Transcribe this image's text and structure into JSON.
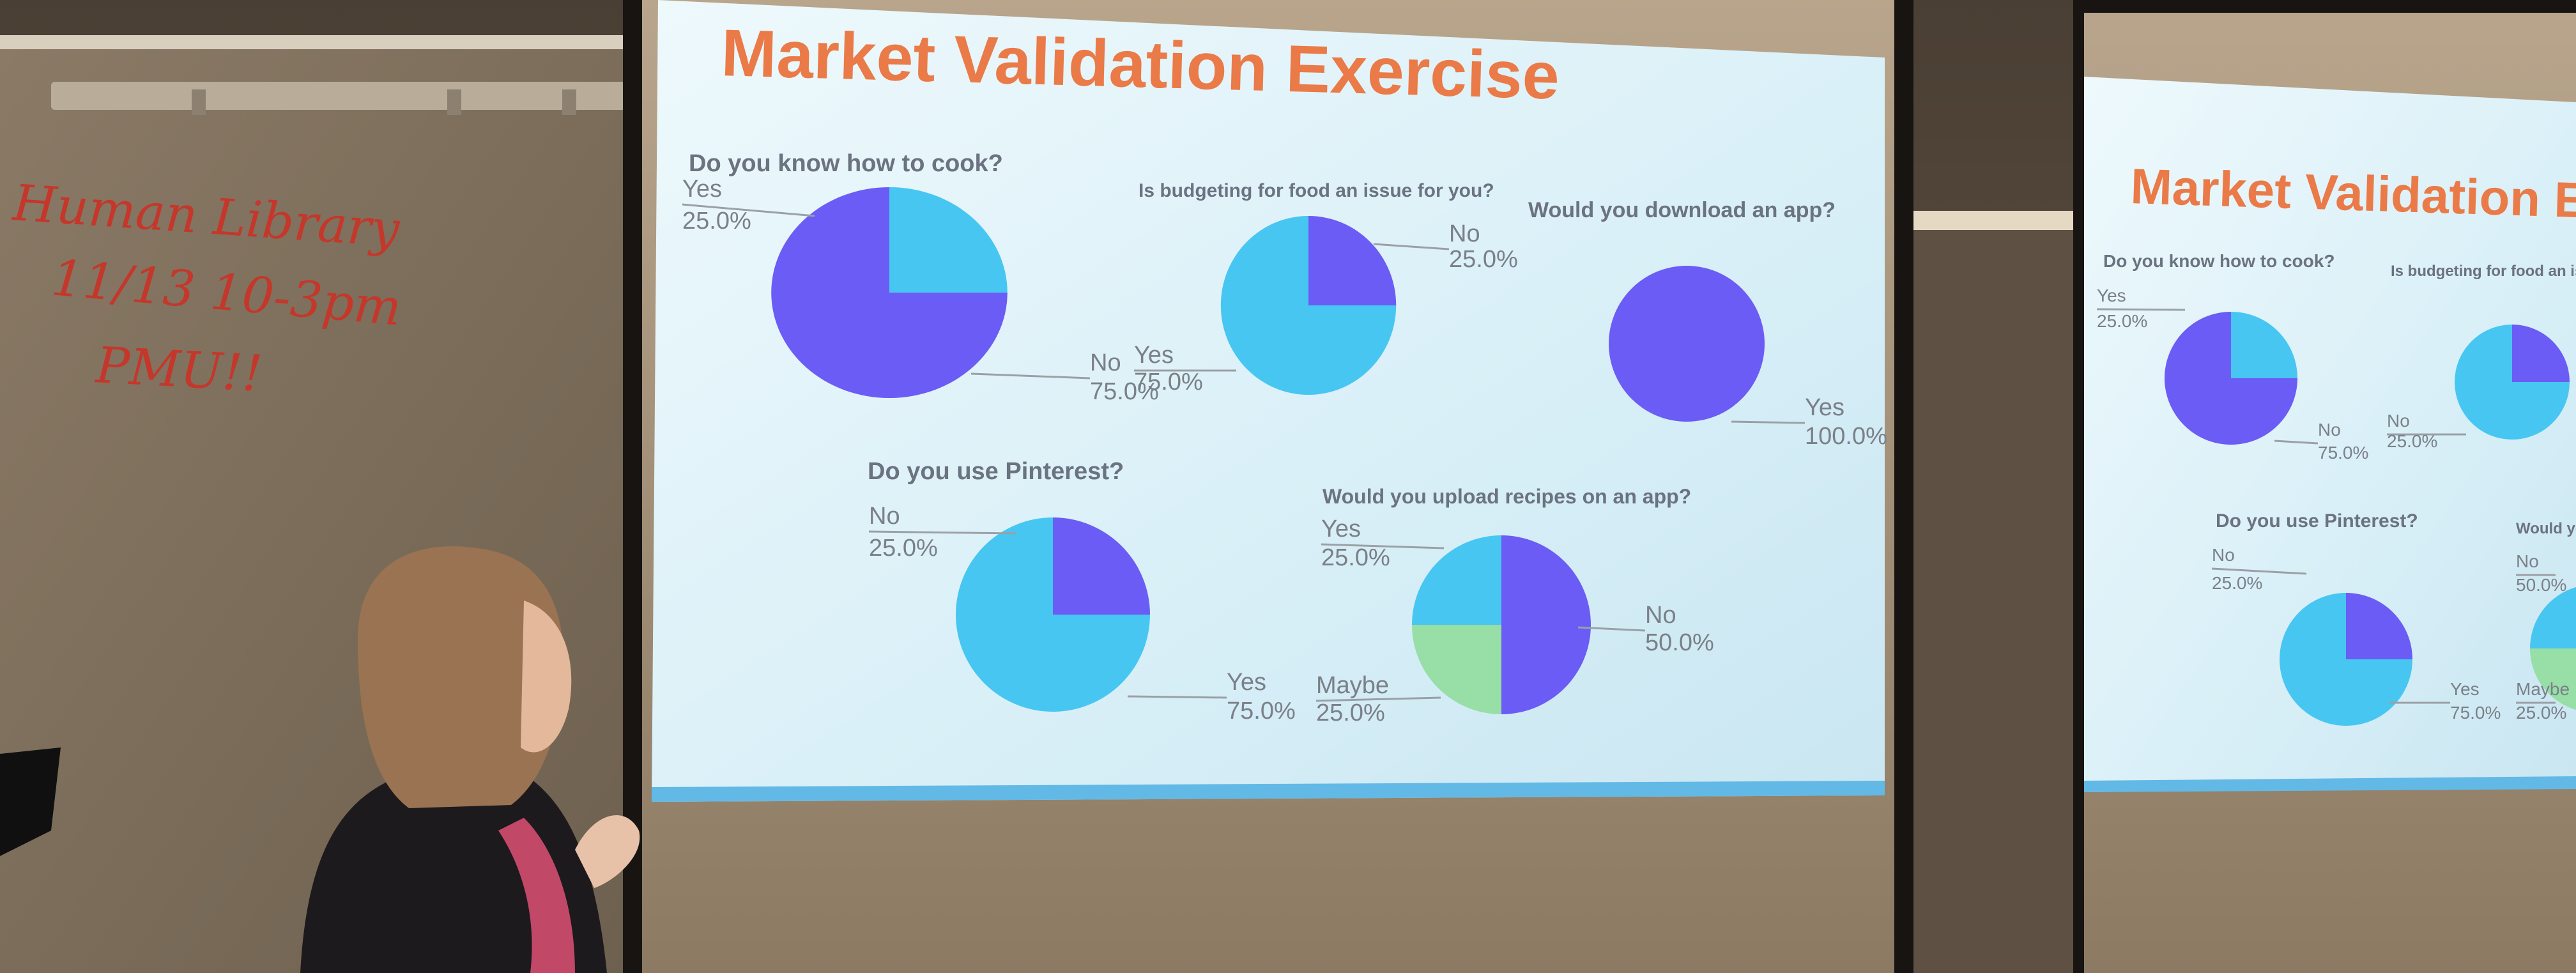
{
  "whiteboard": {
    "lines": [
      "Human Library",
      "11/13  10-3pm",
      "PMU!!"
    ]
  },
  "colors": {
    "purple": "#6a5cf5",
    "cyan": "#47c6f2",
    "green": "#97dea7",
    "title": "#ea7a47",
    "slide_bg": "#dcf0f7",
    "accent_band": "#62b9e6"
  },
  "slide": {
    "title": "Market Validation Exercise",
    "charts": [
      {
        "question": "Do you know how to cook?",
        "chart_data": {
          "type": "pie",
          "slices": [
            {
              "label": "Yes",
              "value": 25.0,
              "display": "25.0%",
              "color": "#47c6f2"
            },
            {
              "label": "No",
              "value": 75.0,
              "display": "75.0%",
              "color": "#6a5cf5"
            }
          ]
        }
      },
      {
        "question": "Is budgeting for food an issue for you?",
        "chart_data": {
          "type": "pie",
          "slices": [
            {
              "label": "No",
              "value": 25.0,
              "display": "25.0%",
              "color": "#6a5cf5"
            },
            {
              "label": "Yes",
              "value": 75.0,
              "display": "75.0%",
              "color": "#47c6f2"
            }
          ]
        }
      },
      {
        "question": "Would you download an app?",
        "chart_data": {
          "type": "pie",
          "slices": [
            {
              "label": "Yes",
              "value": 100.0,
              "display": "100.0%",
              "color": "#6a5cf5"
            }
          ]
        }
      },
      {
        "question": "Do you use Pinterest?",
        "chart_data": {
          "type": "pie",
          "slices": [
            {
              "label": "No",
              "value": 25.0,
              "display": "25.0%",
              "color": "#6a5cf5"
            },
            {
              "label": "Yes",
              "value": 75.0,
              "display": "75.0%",
              "color": "#47c6f2"
            }
          ]
        }
      },
      {
        "question": "Would you upload recipes on an app?",
        "chart_data": {
          "type": "pie",
          "slices": [
            {
              "label": "No",
              "value": 50.0,
              "display": "50.0%",
              "color": "#6a5cf5"
            },
            {
              "label": "Maybe",
              "value": 25.0,
              "display": "25.0%",
              "color": "#97dea7"
            },
            {
              "label": "Yes",
              "value": 25.0,
              "display": "25.0%",
              "color": "#47c6f2"
            }
          ]
        }
      }
    ]
  }
}
